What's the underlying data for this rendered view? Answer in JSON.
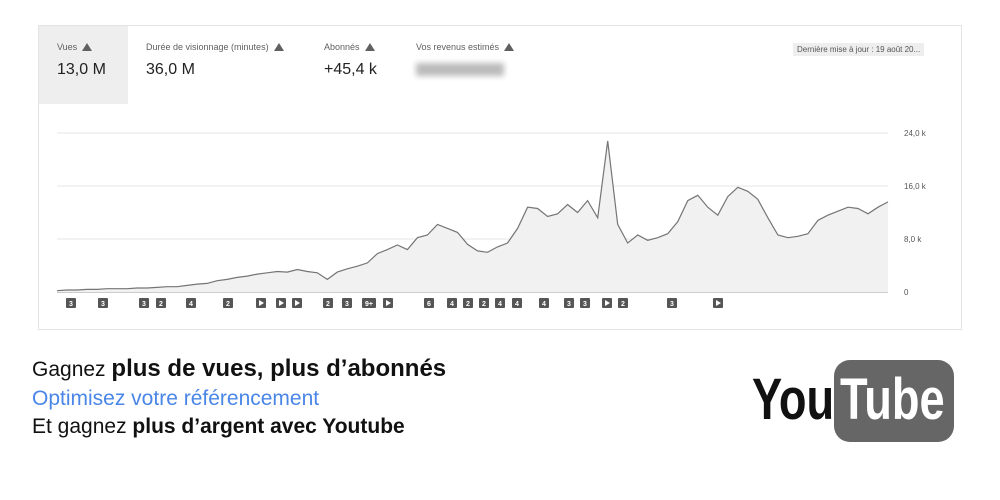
{
  "metrics": [
    {
      "label": "Vues",
      "value": "13,0 M"
    },
    {
      "label": "Durée de visionnage (minutes)",
      "value": "36,0 M"
    },
    {
      "label": "Abonnés",
      "value": "+45,4 k"
    },
    {
      "label": "Vos revenus estimés"
    }
  ],
  "last_update": "Dernière mise à jour : 19 août 20...",
  "chart_data": {
    "type": "line",
    "color": "#757575",
    "fill": "#f1f1f1",
    "values": [
      200,
      300,
      300,
      400,
      400,
      500,
      500,
      500,
      600,
      600,
      700,
      800,
      800,
      1000,
      1200,
      1300,
      1700,
      1900,
      2200,
      2400,
      2700,
      2900,
      3100,
      3000,
      3400,
      3100,
      2900,
      1900,
      3000,
      3500,
      3900,
      4400,
      5800,
      6400,
      7100,
      6400,
      8200,
      8600,
      10200,
      9600,
      9000,
      7200,
      6200,
      6000,
      6800,
      7400,
      9600,
      12800,
      12600,
      11400,
      11800,
      13200,
      12000,
      13800,
      11200,
      22800,
      10200,
      7400,
      8600,
      7800,
      8200,
      8800,
      10600,
      13800,
      14600,
      12800,
      11600,
      14400,
      15800,
      15200,
      14000,
      11200,
      8600,
      8200,
      8400,
      8800,
      10800,
      11600,
      12200,
      12800,
      12600,
      11800,
      12800,
      13600
    ],
    "ylim": [
      0,
      24000
    ],
    "yticks": [
      0,
      {
        "value": 8000,
        "label": "8,0 k"
      },
      {
        "value": 16000,
        "label": "16,0 k"
      },
      {
        "value": 24000,
        "label": "24,0 k"
      }
    ],
    "grid": true,
    "markers": [
      {
        "label": "3"
      },
      {
        "label": "3"
      },
      {
        "label": "3"
      },
      {
        "label": "2"
      },
      {
        "label": "4"
      },
      {
        "label": "2"
      },
      {
        "icon": "play"
      },
      {
        "icon": "play"
      },
      {
        "icon": "play"
      },
      {
        "label": "2"
      },
      {
        "label": "3"
      },
      {
        "label": "9+"
      },
      {
        "icon": "play"
      },
      {
        "label": "6"
      },
      {
        "label": "4"
      },
      {
        "label": "2"
      },
      {
        "label": "2"
      },
      {
        "label": "4"
      },
      {
        "label": "4"
      },
      {
        "label": "4"
      },
      {
        "label": "3"
      },
      {
        "label": "3"
      },
      {
        "icon": "play"
      },
      {
        "label": "2"
      },
      {
        "label": "3"
      },
      {
        "icon": "play"
      }
    ]
  },
  "promo": {
    "line1": {
      "normal": "Gagnez",
      "bold": "plus de vues, plus d’abonnés"
    },
    "line2": "Optimisez votre référencement",
    "line3": {
      "normal": "Et gagnez",
      "bold": "plus d’argent avec Youtube"
    }
  },
  "logo": {
    "left": "You",
    "right": "Tube"
  }
}
